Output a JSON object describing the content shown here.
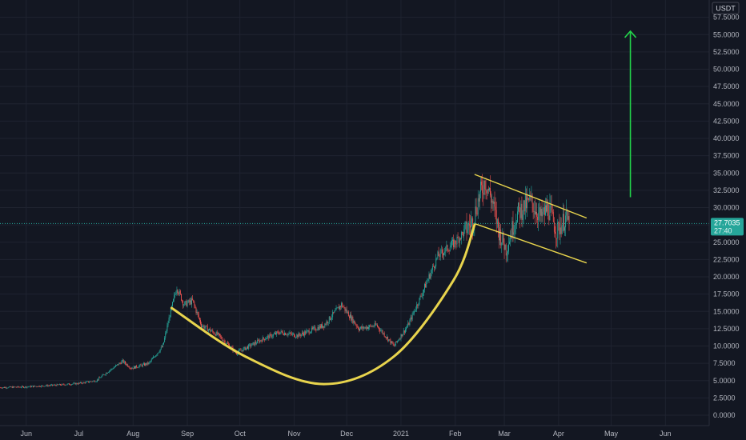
{
  "chart_data": {
    "type": "candlestick",
    "currency_label": "USDT",
    "y_ticks": [
      0,
      2.5,
      5,
      7.5,
      10,
      12.5,
      15,
      17.5,
      20,
      22.5,
      25,
      27.5,
      30,
      32.5,
      35,
      37.5,
      40,
      42.5,
      45,
      47.5,
      50,
      52.5,
      55,
      57.5
    ],
    "y_tick_labels": [
      "0.0000",
      "2.5000",
      "5.0000",
      "7.5000",
      "10.0000",
      "12.5000",
      "15.0000",
      "17.5000",
      "20.0000",
      "22.5000",
      "25.0000",
      "27.5000",
      "30.0000",
      "32.5000",
      "35.0000",
      "37.5000",
      "40.0000",
      "42.5000",
      "45.0000",
      "47.5000",
      "50.0000",
      "52.5000",
      "55.0000",
      "57.5000"
    ],
    "x_ticks": [
      "Jun",
      "Jul",
      "Aug",
      "Sep",
      "Oct",
      "Nov",
      "Dec",
      "2021",
      "Feb",
      "Mar",
      "Apr",
      "May",
      "Jun"
    ],
    "x_tick_days": [
      0,
      30,
      61,
      92,
      122,
      153,
      183,
      214,
      245,
      273,
      304,
      334,
      365
    ],
    "ylim": [
      -1.5,
      60
    ],
    "xlim_days": [
      -15,
      390
    ],
    "last_price": 27.7035,
    "last_price_label": "27.7035",
    "countdown_label": "27:40",
    "colors": {
      "up": "#26a69a",
      "down": "#ef5350",
      "pattern": "#e8d44d",
      "arrow": "#22d44a",
      "last_price": "#26a69a"
    },
    "price_path": [
      [
        -15,
        4.0
      ],
      [
        0,
        4.1
      ],
      [
        20,
        4.4
      ],
      [
        30,
        4.6
      ],
      [
        40,
        5.0
      ],
      [
        45,
        6.0
      ],
      [
        55,
        7.8
      ],
      [
        60,
        6.8
      ],
      [
        70,
        7.5
      ],
      [
        78,
        10.0
      ],
      [
        82,
        14.5
      ],
      [
        86,
        18.5
      ],
      [
        90,
        16.0
      ],
      [
        95,
        16.5
      ],
      [
        100,
        13.0
      ],
      [
        110,
        11.5
      ],
      [
        120,
        9.0
      ],
      [
        135,
        11.0
      ],
      [
        145,
        12.0
      ],
      [
        155,
        11.5
      ],
      [
        170,
        13.0
      ],
      [
        180,
        16.0
      ],
      [
        190,
        12.5
      ],
      [
        200,
        13.0
      ],
      [
        210,
        10.0
      ],
      [
        218,
        13.0
      ],
      [
        225,
        17.0
      ],
      [
        235,
        23.0
      ],
      [
        245,
        25.0
      ],
      [
        255,
        28.0
      ],
      [
        258,
        31.0
      ],
      [
        262,
        34.0
      ],
      [
        266,
        31.0
      ],
      [
        270,
        26.5
      ],
      [
        274,
        24.0
      ],
      [
        280,
        29.0
      ],
      [
        288,
        31.0
      ],
      [
        294,
        28.5
      ],
      [
        298,
        30.0
      ],
      [
        303,
        26.5
      ],
      [
        308,
        28.5
      ],
      [
        310,
        27.7
      ]
    ],
    "annotations": [
      {
        "type": "cup_curve",
        "points": [
          [
            83,
            15.5
          ],
          [
            125,
            8.5
          ],
          [
            170,
            4.5
          ],
          [
            210,
            8.5
          ],
          [
            244,
            19.5
          ],
          [
            256,
            27.5
          ]
        ]
      },
      {
        "type": "channel_line",
        "points": [
          [
            256,
            34.8
          ],
          [
            320,
            28.5
          ]
        ]
      },
      {
        "type": "channel_line",
        "points": [
          [
            256,
            27.7
          ],
          [
            320,
            22.0
          ]
        ]
      },
      {
        "type": "arrow_up",
        "points": [
          [
            345,
            31.5
          ],
          [
            345,
            55.5
          ]
        ]
      }
    ]
  }
}
